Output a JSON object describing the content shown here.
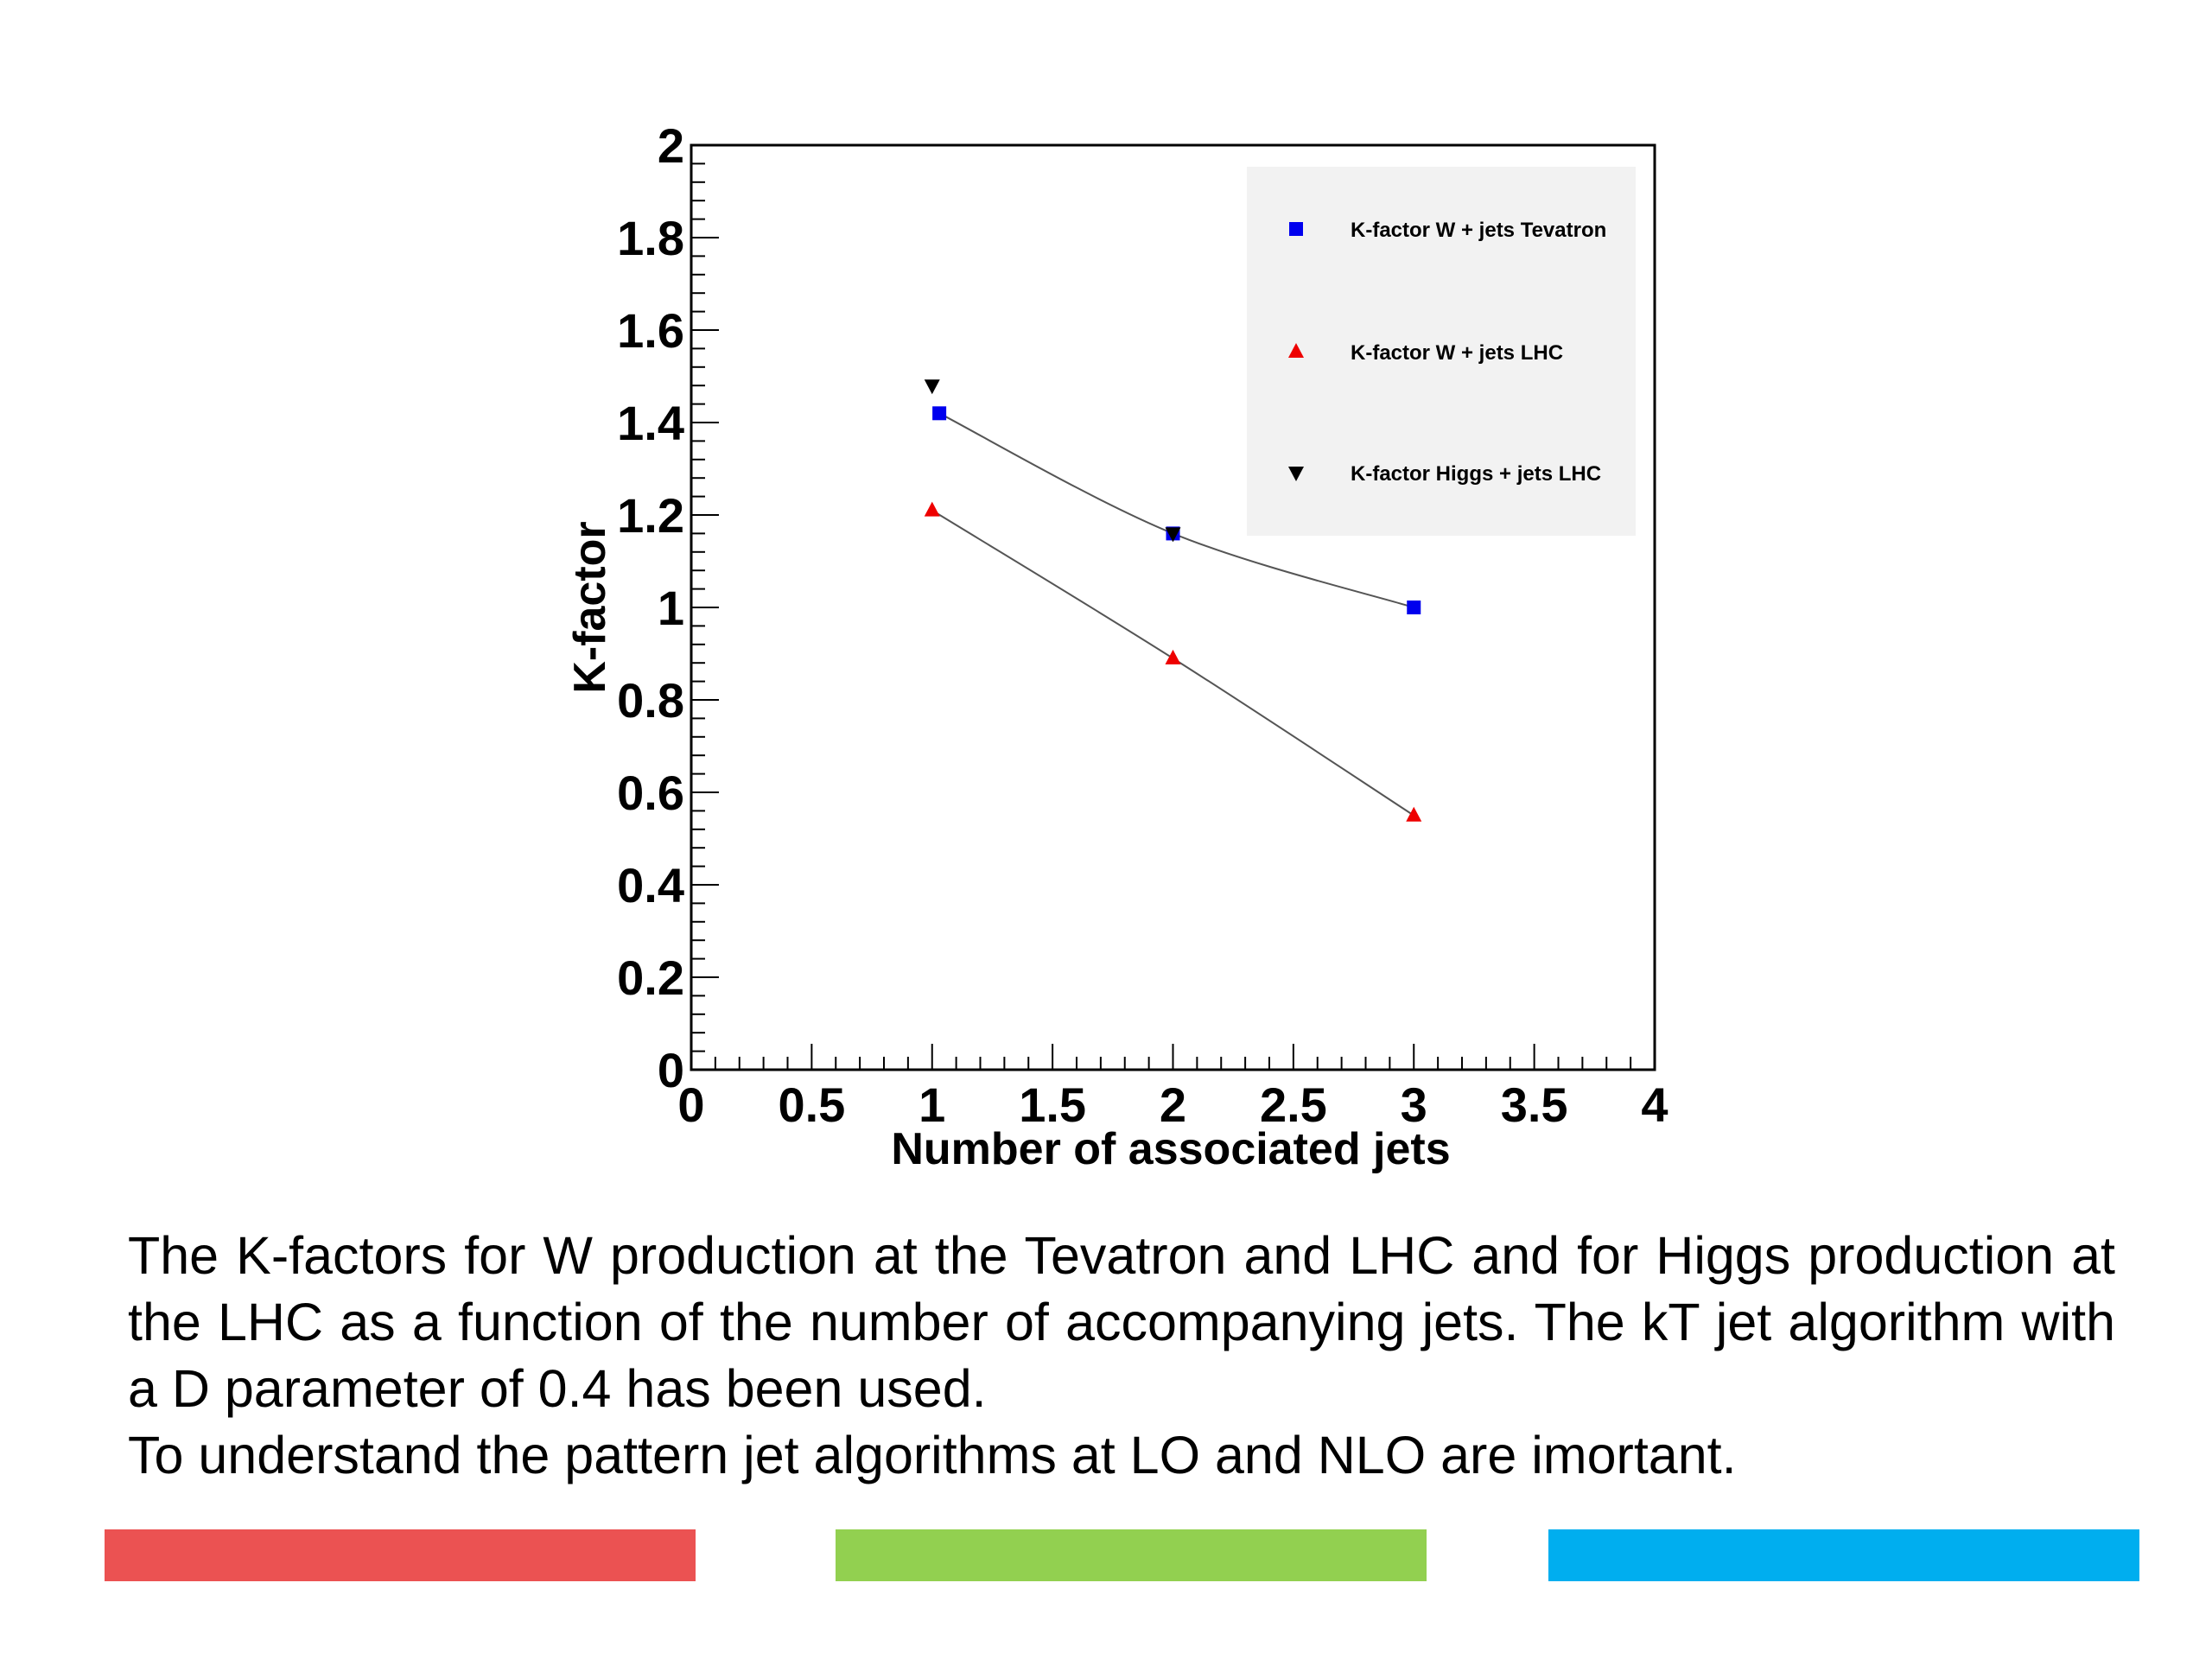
{
  "chart_data": {
    "type": "scatter",
    "xlabel": "Number of associated jets",
    "ylabel": "K-factor",
    "xlim": [
      0,
      4
    ],
    "ylim": [
      0,
      2
    ],
    "x_ticks": [
      "0",
      "0.5",
      "1",
      "1.5",
      "2",
      "2.5",
      "3",
      "3.5",
      "4"
    ],
    "y_ticks": [
      "0",
      "0.2",
      "0.4",
      "0.6",
      "0.8",
      "1",
      "1.2",
      "1.4",
      "1.6",
      "1.8",
      "2"
    ],
    "legend_position": "top-right",
    "grid": false,
    "series": [
      {
        "name": "K-factor W + jets Tevatron",
        "marker": "square",
        "color": "#0000ee",
        "fit_line": true,
        "x": [
          1.03,
          2,
          3
        ],
        "y": [
          1.42,
          1.16,
          1.0
        ]
      },
      {
        "name": "K-factor W + jets LHC",
        "marker": "triangle-up",
        "color": "#ee0000",
        "fit_line": true,
        "x": [
          1,
          2,
          3
        ],
        "y": [
          1.21,
          0.89,
          0.55
        ]
      },
      {
        "name": "K-factor Higgs + jets LHC",
        "marker": "triangle-down",
        "color": "#000000",
        "fit_line": false,
        "x": [
          1,
          2
        ],
        "y": [
          1.48,
          1.16
        ]
      }
    ]
  },
  "caption": {
    "paragraph1": "The K-factors for W production at the Tevatron and LHC and for Higgs production at the LHC as a function of the number of accompanying jets. The kT jet algorithm with a D parameter of 0.4 has been used.",
    "paragraph2": "To understand the pattern jet algorithms at LO and NLO are imortant."
  },
  "footer_bars": {
    "colors": [
      "#eb5252",
      "#92d050",
      "#00aeef"
    ]
  }
}
